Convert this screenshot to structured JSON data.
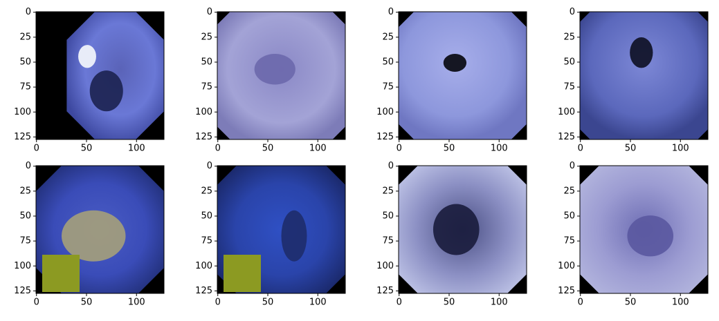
{
  "figure": {
    "panels": [
      {
        "xlim": [
          -0.5,
          127.5
        ],
        "ylim": [
          127.5,
          -0.5
        ],
        "xticks": [
          0,
          50,
          100
        ],
        "yticks": [
          0,
          25,
          50,
          75,
          100,
          125
        ]
      },
      {
        "xlim": [
          -0.5,
          127.5
        ],
        "ylim": [
          127.5,
          -0.5
        ],
        "xticks": [
          0,
          50,
          100
        ],
        "yticks": [
          0,
          25,
          50,
          75,
          100,
          125
        ]
      },
      {
        "xlim": [
          -0.5,
          127.5
        ],
        "ylim": [
          127.5,
          -0.5
        ],
        "xticks": [
          0,
          50,
          100
        ],
        "yticks": [
          0,
          25,
          50,
          75,
          100,
          125
        ]
      },
      {
        "xlim": [
          -0.5,
          127.5
        ],
        "ylim": [
          127.5,
          -0.5
        ],
        "xticks": [
          0,
          50,
          100
        ],
        "yticks": [
          0,
          25,
          50,
          75,
          100,
          125
        ]
      },
      {
        "xlim": [
          -0.5,
          127.5
        ],
        "ylim": [
          127.5,
          -0.5
        ],
        "xticks": [
          0,
          50,
          100
        ],
        "yticks": [
          0,
          25,
          50,
          75,
          100,
          125
        ]
      },
      {
        "xlim": [
          -0.5,
          127.5
        ],
        "ylim": [
          127.5,
          -0.5
        ],
        "xticks": [
          0,
          50,
          100
        ],
        "yticks": [
          0,
          25,
          50,
          75,
          100,
          125
        ]
      },
      {
        "xlim": [
          -0.5,
          127.5
        ],
        "ylim": [
          127.5,
          -0.5
        ],
        "xticks": [
          0,
          50,
          100
        ],
        "yticks": [
          0,
          25,
          50,
          75,
          100,
          125
        ]
      },
      {
        "xlim": [
          -0.5,
          127.5
        ],
        "ylim": [
          127.5,
          -0.5
        ],
        "xticks": [
          0,
          50,
          100
        ],
        "yticks": [
          0,
          25,
          50,
          75,
          100,
          125
        ]
      }
    ]
  }
}
